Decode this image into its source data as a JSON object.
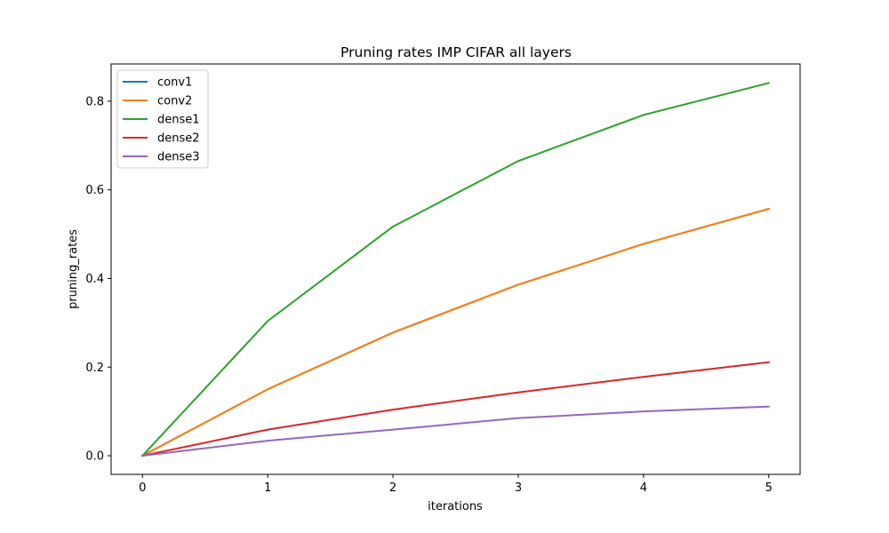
{
  "chart_data": {
    "type": "line",
    "title": "Pruning rates IMP CIFAR all layers",
    "xlabel": "iterations",
    "ylabel": "pruning_rates",
    "x": [
      0,
      1,
      2,
      3,
      4,
      5
    ],
    "xlim": [
      -0.25,
      5.25
    ],
    "ylim": [
      -0.042,
      0.884
    ],
    "xticks": [
      0,
      1,
      2,
      3,
      4,
      5
    ],
    "yticks": [
      0.0,
      0.2,
      0.4,
      0.6,
      0.8
    ],
    "xtick_labels": [
      "0",
      "1",
      "2",
      "3",
      "4",
      "5"
    ],
    "ytick_labels": [
      "0.0",
      "0.2",
      "0.4",
      "0.6",
      "0.8"
    ],
    "grid": false,
    "legend_position": "top-left",
    "series": [
      {
        "name": "conv1",
        "color": "#1f77b4",
        "values": [
          0.0,
          0.15,
          0.278,
          0.386,
          0.478,
          0.557
        ]
      },
      {
        "name": "conv2",
        "color": "#ff7f0e",
        "values": [
          0.0,
          0.15,
          0.278,
          0.386,
          0.478,
          0.557
        ]
      },
      {
        "name": "dense1",
        "color": "#2ca02c",
        "values": [
          0.0,
          0.304,
          0.517,
          0.665,
          0.769,
          0.841
        ]
      },
      {
        "name": "dense2",
        "color": "#d62728",
        "values": [
          0.0,
          0.059,
          0.104,
          0.143,
          0.178,
          0.211
        ]
      },
      {
        "name": "dense3",
        "color": "#9467bd",
        "values": [
          0.0,
          0.034,
          0.059,
          0.085,
          0.1,
          0.111
        ]
      }
    ]
  }
}
